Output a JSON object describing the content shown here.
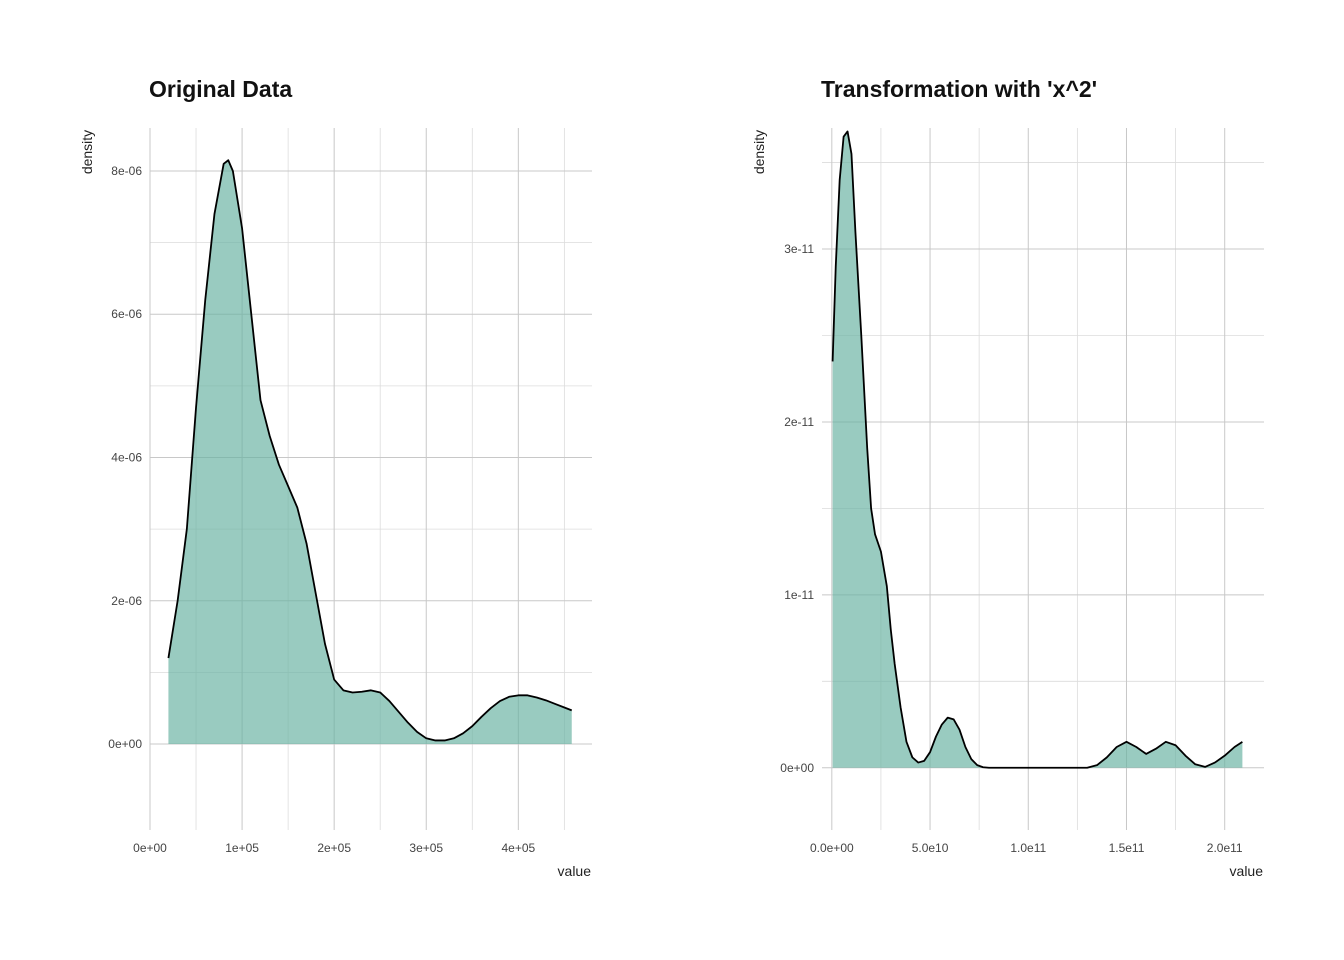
{
  "chart_data": [
    {
      "type": "area",
      "title": "Original Data",
      "xlabel": "value",
      "ylabel": "density",
      "xlim": [
        0,
        480000
      ],
      "ylim": [
        -1.2e-06,
        8.6e-06
      ],
      "x_ticks": [
        0,
        100000,
        200000,
        300000,
        400000
      ],
      "x_tick_labels": [
        "0e+00",
        "1e+05",
        "2e+05",
        "3e+05",
        "4e+05"
      ],
      "y_ticks": [
        0,
        2e-06,
        4e-06,
        6e-06,
        8e-06
      ],
      "y_tick_labels": [
        "0e+00",
        "2e-06",
        "4e-06",
        "6e-06",
        "8e-06"
      ],
      "fill_color": "#69b3a2",
      "line_color": "#000000",
      "series": [
        {
          "x": [
            20000,
            30000,
            40000,
            50000,
            60000,
            70000,
            80000,
            85000,
            90000,
            100000,
            110000,
            120000,
            130000,
            140000,
            150000,
            160000,
            170000,
            180000,
            190000,
            200000,
            210000,
            220000,
            230000,
            240000,
            250000,
            260000,
            270000,
            280000,
            290000,
            300000,
            310000,
            320000,
            330000,
            340000,
            350000,
            360000,
            370000,
            380000,
            390000,
            400000,
            410000,
            420000,
            430000,
            440000,
            450000,
            458000
          ],
          "y": [
            1.2e-06,
            2e-06,
            3e-06,
            4.7e-06,
            6.2e-06,
            7.4e-06,
            8.1e-06,
            8.15e-06,
            8e-06,
            7.2e-06,
            6e-06,
            4.8e-06,
            4.3e-06,
            3.9e-06,
            3.6e-06,
            3.3e-06,
            2.8e-06,
            2.1e-06,
            1.4e-06,
            9e-07,
            7.5e-07,
            7.2e-07,
            7.3e-07,
            7.5e-07,
            7.2e-07,
            6e-07,
            4.5e-07,
            3e-07,
            1.7e-07,
            8e-08,
            5e-08,
            5e-08,
            8e-08,
            1.5e-07,
            2.5e-07,
            3.8e-07,
            5e-07,
            6e-07,
            6.6e-07,
            6.8e-07,
            6.8e-07,
            6.5e-07,
            6.1e-07,
            5.6e-07,
            5.1e-07,
            4.7e-07
          ]
        }
      ]
    },
    {
      "type": "area",
      "title": "Transformation with 'x^2'",
      "xlabel": "value",
      "ylabel": "density",
      "xlim": [
        -5000000000.0,
        220000000000.0
      ],
      "ylim": [
        -3.6e-12,
        3.7e-11
      ],
      "x_ticks": [
        0,
        50000000000.0,
        100000000000.0,
        150000000000.0,
        200000000000.0
      ],
      "x_tick_labels": [
        "0.0e+00",
        "5.0e10",
        "1.0e11",
        "1.5e11",
        "2.0e11"
      ],
      "y_ticks": [
        0,
        1e-11,
        2e-11,
        3e-11
      ],
      "y_tick_labels": [
        "0e+00",
        "1e-11",
        "2e-11",
        "3e-11"
      ],
      "fill_color": "#69b3a2",
      "line_color": "#000000",
      "series": [
        {
          "x": [
            400000000,
            2000000000,
            4000000000,
            6000000000,
            8000000000,
            10000000000,
            12000000000,
            15000000000,
            18000000000,
            20000000000,
            22000000000,
            25000000000,
            28000000000,
            30000000000,
            32000000000,
            35000000000,
            38000000000,
            41000000000,
            44000000000,
            47000000000,
            50000000000,
            53000000000,
            56000000000,
            59000000000,
            62000000000,
            65000000000,
            68000000000,
            71000000000,
            74000000000,
            77000000000,
            80000000000,
            85000000000,
            90000000000,
            100000000000,
            110000000000,
            120000000000,
            130000000000,
            135000000000,
            140000000000,
            145000000000,
            150000000000,
            155000000000,
            160000000000,
            165000000000,
            170000000000,
            175000000000,
            180000000000,
            185000000000,
            190000000000,
            195000000000,
            200000000000,
            205000000000,
            209000000000
          ],
          "y": [
            2.35e-11,
            2.9e-11,
            3.4e-11,
            3.65e-11,
            3.68e-11,
            3.55e-11,
            3.1e-11,
            2.5e-11,
            1.85e-11,
            1.5e-11,
            1.35e-11,
            1.25e-11,
            1.05e-11,
            8e-12,
            6e-12,
            3.5e-12,
            1.5e-12,
            6e-13,
            3e-13,
            4e-13,
            9e-13,
            1.8e-12,
            2.5e-12,
            2.9e-12,
            2.8e-12,
            2.2e-12,
            1.2e-12,
            5e-13,
            1.5e-13,
            3e-14,
            0,
            0,
            0,
            0,
            0,
            0,
            0,
            1.5e-13,
            6e-13,
            1.2e-12,
            1.5e-12,
            1.2e-12,
            8e-13,
            1.1e-12,
            1.5e-12,
            1.3e-12,
            7e-13,
            2e-13,
            5e-14,
            3e-13,
            7e-13,
            1.2e-12,
            1.5e-12
          ]
        }
      ]
    }
  ]
}
